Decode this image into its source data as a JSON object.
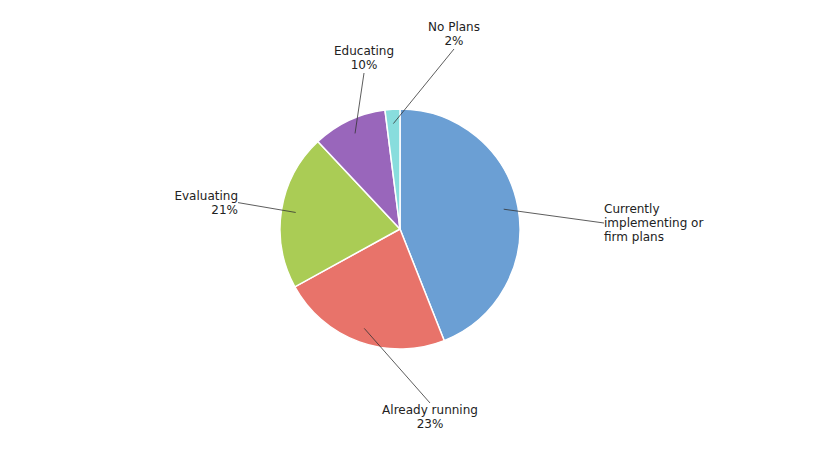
{
  "chart_data": {
    "type": "pie",
    "categories": [
      "Currently\nimplementing or\nfirm plans",
      "Already running\n23%",
      "Evaluating\n21%",
      "Educating\n10%",
      "No Plans\n2%"
    ],
    "values": [
      44,
      23,
      21,
      10,
      2
    ],
    "colors": [
      "#6B9FD4",
      "#E8736A",
      "#AACC55",
      "#9966BB",
      "#88DDDD"
    ]
  }
}
